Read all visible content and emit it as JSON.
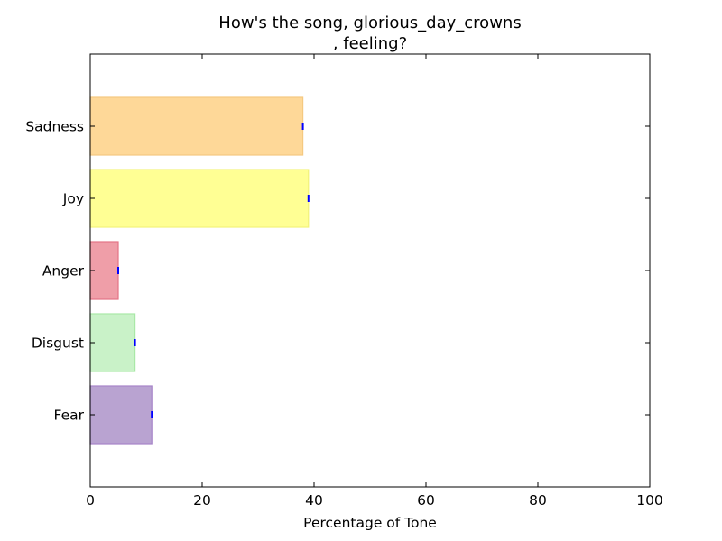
{
  "chart_data": {
    "type": "bar",
    "orientation": "horizontal",
    "title_lines": [
      "How's the song, glorious_day_crowns",
      ", feeling?"
    ],
    "xlabel": "Percentage of Tone",
    "ylabel": "",
    "xlim": [
      0,
      100
    ],
    "xticks": [
      "0",
      "20",
      "40",
      "60",
      "80",
      "100"
    ],
    "grid": false,
    "categories": [
      "Fear",
      "Disgust",
      "Anger",
      "Joy",
      "Sadness"
    ],
    "values": [
      11,
      8,
      5,
      39,
      38
    ],
    "colors": [
      "#b9a3d1",
      "#c9f2c8",
      "#ef9ea8",
      "#ffff94",
      "#fed898"
    ],
    "edge_colors": [
      "#a684c8",
      "#a9e8a7",
      "#e47486",
      "#f2f27a",
      "#f5c980"
    ],
    "error_marker_color": "#0000ff"
  }
}
